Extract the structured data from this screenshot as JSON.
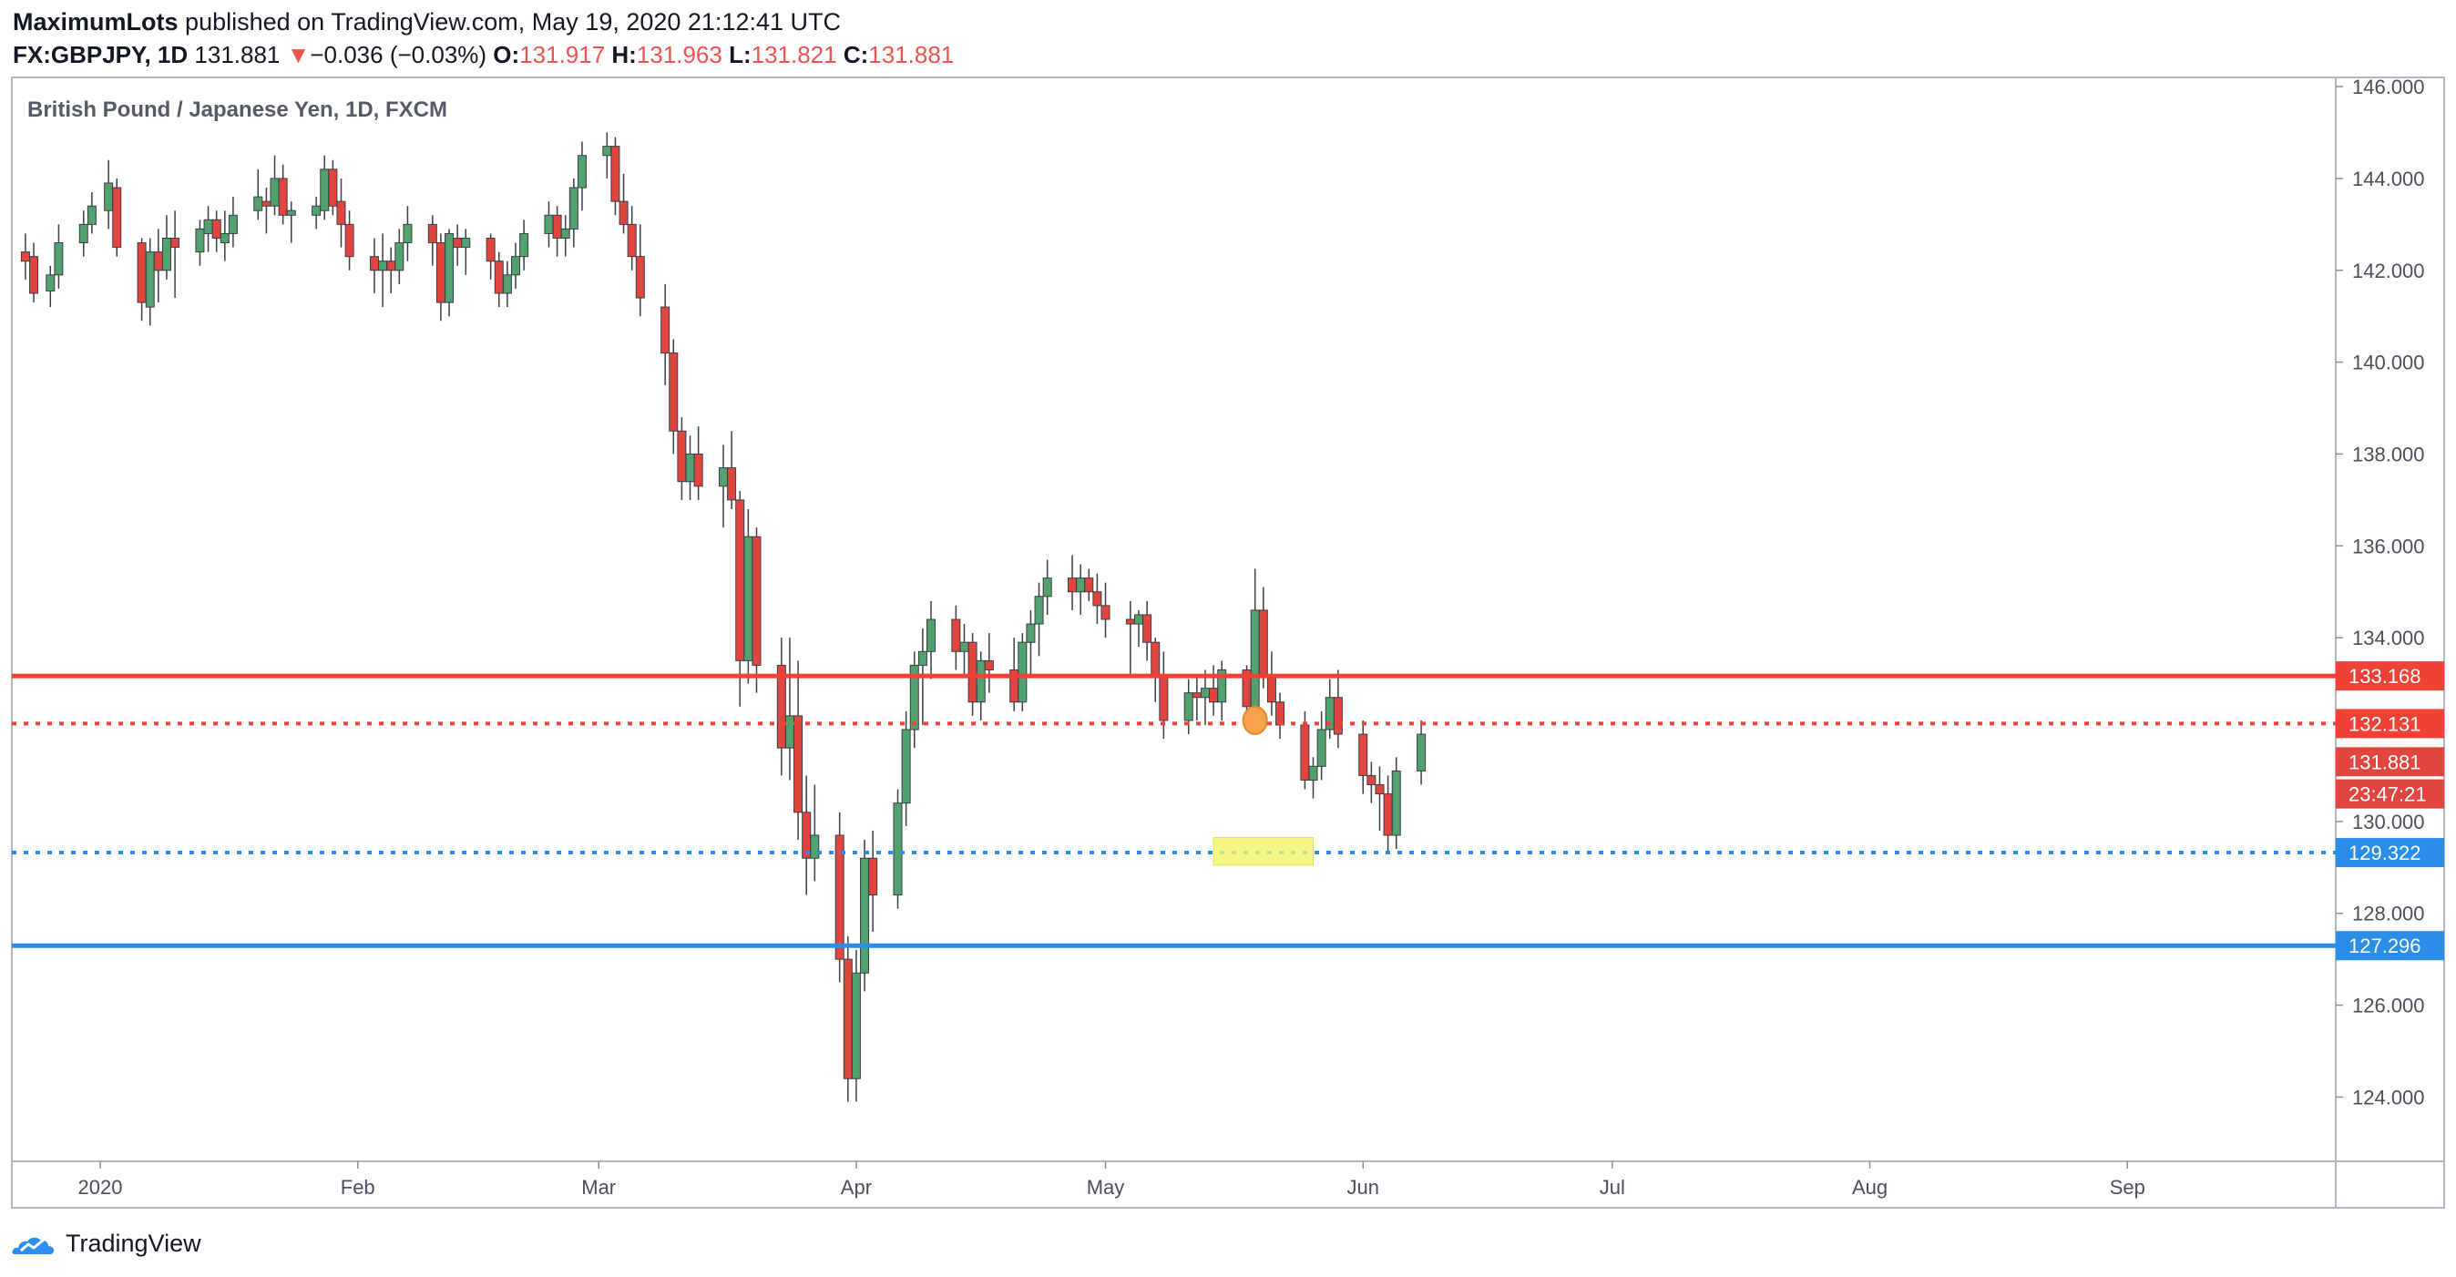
{
  "header": {
    "author": "MaximumLots",
    "published_text": "published on TradingView.com, May 19, 2020 21:12:41 UTC",
    "symbol": "FX:GBPJPY, 1D",
    "last": "131.881",
    "change_arrow": "▼",
    "change": "−0.036 (−0.03%)",
    "o_label": "O:",
    "o_value": "131.917",
    "h_label": "H:",
    "h_value": "131.963",
    "l_label": "L:",
    "l_value": "131.821",
    "c_label": "C:",
    "c_value": "131.881"
  },
  "footer": {
    "brand": "TradingView"
  },
  "colors": {
    "up": "#51a26f",
    "down": "#e0463f",
    "red_level": "#ef4135",
    "blue_level": "#2a8ee8",
    "marker": "#f6a34b",
    "zone": "#f4f467"
  },
  "chart_data": {
    "type": "candlestick",
    "title": "British Pound / Japanese Yen, 1D, FXCM",
    "y_range": [
      122.6,
      146.2
    ],
    "y_ticks": [
      "146.000",
      "144.000",
      "142.000",
      "140.000",
      "138.000",
      "136.000",
      "134.000",
      "132.000",
      "130.000",
      "128.000",
      "126.000",
      "124.000"
    ],
    "x_ticks": [
      "2020",
      "Feb",
      "Mar",
      "Apr",
      "May",
      "Jun",
      "Jul",
      "Aug",
      "Sep"
    ],
    "levels": [
      {
        "price": 133.168,
        "label": "133.168",
        "color": "#ef4135",
        "style": "solid"
      },
      {
        "price": 132.131,
        "label": "132.131",
        "color": "#ef4135",
        "style": "dotted"
      },
      {
        "price": 129.322,
        "label": "129.322",
        "color": "#2a8ee8",
        "style": "dotted"
      },
      {
        "price": 127.296,
        "label": "127.296",
        "color": "#2a8ee8",
        "style": "solid"
      }
    ],
    "price_tags": [
      {
        "text": "131.881",
        "price": 131.3,
        "color": "#e0463f"
      },
      {
        "text": "23:47:21",
        "price": 130.6,
        "color": "#e0463f"
      }
    ],
    "marker": {
      "date": "2020-05-19",
      "price": 132.2
    },
    "zone": {
      "from": "2020-05-14",
      "to": "2020-05-26",
      "low": 129.05,
      "high": 129.65
    },
    "candles": [
      [
        "2019-12-23",
        142.4,
        142.8,
        141.8,
        142.2
      ],
      [
        "2019-12-24",
        142.3,
        142.6,
        141.3,
        141.5
      ],
      [
        "2019-12-26",
        141.55,
        142.1,
        141.2,
        141.9
      ],
      [
        "2019-12-27",
        141.9,
        143.0,
        141.6,
        142.6
      ],
      [
        "2019-12-30",
        142.6,
        143.3,
        142.3,
        143.0
      ],
      [
        "2019-12-31",
        143.0,
        143.7,
        142.8,
        143.4
      ],
      [
        "2020-01-02",
        143.3,
        144.4,
        142.9,
        143.9
      ],
      [
        "2020-01-03",
        143.8,
        144.0,
        142.3,
        142.5
      ],
      [
        "2020-01-06",
        142.6,
        142.7,
        140.9,
        141.3
      ],
      [
        "2020-01-07",
        141.2,
        142.7,
        140.8,
        142.4
      ],
      [
        "2020-01-08",
        142.4,
        142.9,
        141.3,
        142.0
      ],
      [
        "2020-01-09",
        142.0,
        143.2,
        141.8,
        142.7
      ],
      [
        "2020-01-10",
        142.7,
        143.3,
        141.4,
        142.5
      ],
      [
        "2020-01-13",
        142.4,
        143.1,
        142.1,
        142.9
      ],
      [
        "2020-01-14",
        142.8,
        143.4,
        142.4,
        143.1
      ],
      [
        "2020-01-15",
        143.1,
        143.3,
        142.4,
        142.7
      ],
      [
        "2020-01-16",
        142.6,
        143.3,
        142.2,
        142.8
      ],
      [
        "2020-01-17",
        142.8,
        143.6,
        142.5,
        143.2
      ],
      [
        "2020-01-20",
        143.3,
        144.2,
        143.1,
        143.6
      ],
      [
        "2020-01-21",
        143.5,
        143.8,
        142.8,
        143.4
      ],
      [
        "2020-01-22",
        143.4,
        144.5,
        143.2,
        144.0
      ],
      [
        "2020-01-23",
        144.0,
        144.3,
        143.0,
        143.2
      ],
      [
        "2020-01-24",
        143.2,
        143.5,
        142.6,
        143.3
      ],
      [
        "2020-01-27",
        143.2,
        143.6,
        142.9,
        143.4
      ],
      [
        "2020-01-28",
        143.3,
        144.5,
        143.1,
        144.2
      ],
      [
        "2020-01-29",
        144.2,
        144.4,
        143.2,
        143.4
      ],
      [
        "2020-01-30",
        143.5,
        144.0,
        142.5,
        143.0
      ],
      [
        "2020-01-31",
        143.0,
        143.3,
        142.0,
        142.3
      ],
      [
        "2020-02-03",
        142.3,
        142.7,
        141.5,
        142.0
      ],
      [
        "2020-02-04",
        142.0,
        142.8,
        141.2,
        142.2
      ],
      [
        "2020-02-05",
        142.2,
        142.5,
        141.5,
        142.0
      ],
      [
        "2020-02-06",
        142.0,
        142.9,
        141.7,
        142.6
      ],
      [
        "2020-02-07",
        142.6,
        143.4,
        142.2,
        143.0
      ],
      [
        "2020-02-10",
        143.0,
        143.2,
        142.1,
        142.6
      ],
      [
        "2020-02-11",
        142.6,
        142.8,
        140.9,
        141.3
      ],
      [
        "2020-02-12",
        141.3,
        142.9,
        141.0,
        142.8
      ],
      [
        "2020-02-13",
        142.7,
        143.0,
        142.1,
        142.5
      ],
      [
        "2020-02-14",
        142.5,
        142.9,
        141.9,
        142.7
      ],
      [
        "2020-02-17",
        142.7,
        142.8,
        141.8,
        142.2
      ],
      [
        "2020-02-18",
        142.2,
        142.4,
        141.2,
        141.5
      ],
      [
        "2020-02-19",
        141.5,
        142.2,
        141.2,
        141.9
      ],
      [
        "2020-02-20",
        141.9,
        142.6,
        141.6,
        142.3
      ],
      [
        "2020-02-21",
        142.3,
        143.1,
        142.0,
        142.8
      ],
      [
        "2020-02-24",
        142.8,
        143.5,
        142.5,
        143.2
      ],
      [
        "2020-02-25",
        143.2,
        143.4,
        142.3,
        142.7
      ],
      [
        "2020-02-26",
        142.7,
        143.2,
        142.3,
        142.9
      ],
      [
        "2020-02-27",
        142.9,
        144.0,
        142.5,
        143.8
      ],
      [
        "2020-02-28",
        143.8,
        144.8,
        143.3,
        144.5
      ],
      [
        "2020-03-02",
        144.5,
        145.0,
        144.0,
        144.7
      ],
      [
        "2020-03-03",
        144.7,
        144.9,
        143.2,
        143.5
      ],
      [
        "2020-03-04",
        143.5,
        144.1,
        142.8,
        143.0
      ],
      [
        "2020-03-05",
        143.0,
        143.4,
        142.0,
        142.3
      ],
      [
        "2020-03-06",
        142.3,
        143.0,
        141.0,
        141.4
      ],
      [
        "2020-03-09",
        141.2,
        141.7,
        139.5,
        140.2
      ],
      [
        "2020-03-10",
        140.2,
        140.5,
        138.0,
        138.5
      ],
      [
        "2020-03-11",
        138.5,
        138.8,
        137.0,
        137.4
      ],
      [
        "2020-03-12",
        137.4,
        138.4,
        137.0,
        138.0
      ],
      [
        "2020-03-13",
        138.0,
        138.6,
        137.0,
        137.3
      ],
      [
        "2020-03-16",
        137.3,
        138.2,
        136.4,
        137.7
      ],
      [
        "2020-03-17",
        137.7,
        138.5,
        136.8,
        137.0
      ],
      [
        "2020-03-18",
        137.0,
        137.2,
        132.5,
        133.5
      ],
      [
        "2020-03-19",
        133.5,
        136.8,
        133.0,
        136.2
      ],
      [
        "2020-03-20",
        136.2,
        136.4,
        132.8,
        133.4
      ],
      [
        "2020-03-23",
        133.4,
        134.0,
        131.0,
        131.6
      ],
      [
        "2020-03-24",
        131.6,
        134.0,
        130.9,
        132.3
      ],
      [
        "2020-03-25",
        132.3,
        133.5,
        129.6,
        130.2
      ],
      [
        "2020-03-26",
        130.2,
        131.0,
        128.4,
        129.2
      ],
      [
        "2020-03-27",
        129.2,
        130.8,
        128.7,
        129.7
      ],
      [
        "2020-03-30",
        129.7,
        130.2,
        126.5,
        127.0
      ],
      [
        "2020-03-31",
        127.0,
        127.5,
        123.9,
        124.4
      ],
      [
        "2020-04-01",
        124.4,
        127.2,
        123.9,
        126.7
      ],
      [
        "2020-04-02",
        126.7,
        129.6,
        126.3,
        129.2
      ],
      [
        "2020-04-03",
        129.2,
        129.8,
        127.6,
        128.4
      ],
      [
        "2020-04-06",
        128.4,
        130.7,
        128.1,
        130.4
      ],
      [
        "2020-04-07",
        130.4,
        132.4,
        129.9,
        132.0
      ],
      [
        "2020-04-08",
        132.0,
        133.7,
        131.6,
        133.4
      ],
      [
        "2020-04-09",
        133.4,
        134.2,
        132.1,
        133.7
      ],
      [
        "2020-04-10",
        133.7,
        134.8,
        133.1,
        134.4
      ],
      [
        "2020-04-13",
        134.4,
        134.7,
        133.3,
        133.7
      ],
      [
        "2020-04-14",
        133.7,
        134.3,
        133.2,
        133.9
      ],
      [
        "2020-04-15",
        133.9,
        134.1,
        132.3,
        132.6
      ],
      [
        "2020-04-16",
        132.6,
        133.7,
        132.2,
        133.5
      ],
      [
        "2020-04-17",
        133.5,
        134.1,
        132.8,
        133.3
      ],
      [
        "2020-04-20",
        133.3,
        134.0,
        132.4,
        132.6
      ],
      [
        "2020-04-21",
        132.6,
        134.1,
        132.4,
        133.9
      ],
      [
        "2020-04-22",
        133.9,
        134.6,
        133.2,
        134.3
      ],
      [
        "2020-04-23",
        134.3,
        135.2,
        133.6,
        134.9
      ],
      [
        "2020-04-24",
        134.9,
        135.7,
        134.5,
        135.3
      ],
      [
        "2020-04-27",
        135.3,
        135.8,
        134.6,
        135.0
      ],
      [
        "2020-04-28",
        135.0,
        135.6,
        134.5,
        135.3
      ],
      [
        "2020-04-29",
        135.3,
        135.5,
        134.8,
        135.0
      ],
      [
        "2020-04-30",
        135.0,
        135.4,
        134.3,
        134.7
      ],
      [
        "2020-05-01",
        134.7,
        135.2,
        134.0,
        134.4
      ],
      [
        "2020-05-04",
        134.4,
        134.8,
        133.2,
        134.3
      ],
      [
        "2020-05-05",
        134.3,
        134.6,
        133.8,
        134.5
      ],
      [
        "2020-05-06",
        134.5,
        134.8,
        133.5,
        133.9
      ],
      [
        "2020-05-07",
        133.9,
        134.0,
        132.6,
        133.2
      ],
      [
        "2020-05-08",
        133.2,
        133.7,
        131.8,
        132.2
      ],
      [
        "2020-05-11",
        132.2,
        133.1,
        131.9,
        132.8
      ],
      [
        "2020-05-12",
        132.8,
        133.2,
        132.2,
        132.7
      ],
      [
        "2020-05-13",
        132.7,
        133.3,
        132.1,
        132.9
      ],
      [
        "2020-05-14",
        132.9,
        133.4,
        132.3,
        132.6
      ],
      [
        "2020-05-15",
        132.6,
        133.5,
        132.2,
        133.3
      ],
      [
        "2020-05-18",
        133.3,
        133.4,
        132.2,
        132.5
      ],
      [
        "2020-05-19",
        132.5,
        135.5,
        132.3,
        134.6
      ],
      [
        "2020-05-20",
        134.6,
        135.1,
        132.9,
        133.2
      ],
      [
        "2020-05-21",
        133.2,
        133.7,
        132.3,
        132.6
      ],
      [
        "2020-05-22",
        132.6,
        132.8,
        131.8,
        132.1
      ],
      [
        "2020-05-25",
        132.1,
        132.4,
        130.7,
        130.9
      ],
      [
        "2020-05-26",
        130.9,
        131.4,
        130.5,
        131.2
      ],
      [
        "2020-05-27",
        131.2,
        132.4,
        130.9,
        132.0
      ],
      [
        "2020-05-28",
        132.0,
        133.1,
        131.8,
        132.7
      ],
      [
        "2020-05-29",
        132.7,
        133.3,
        131.6,
        131.9
      ],
      [
        "2020-06-01",
        131.9,
        132.2,
        130.6,
        131.0
      ],
      [
        "2020-06-02",
        131.0,
        131.3,
        130.4,
        130.8
      ],
      [
        "2020-06-03",
        130.8,
        131.2,
        129.8,
        130.6
      ],
      [
        "2020-06-04",
        130.6,
        131.0,
        129.3,
        129.7
      ],
      [
        "2020-06-05",
        129.7,
        131.4,
        129.4,
        131.1
      ],
      [
        "2020-06-08",
        131.1,
        132.2,
        130.8,
        131.9
      ]
    ]
  }
}
